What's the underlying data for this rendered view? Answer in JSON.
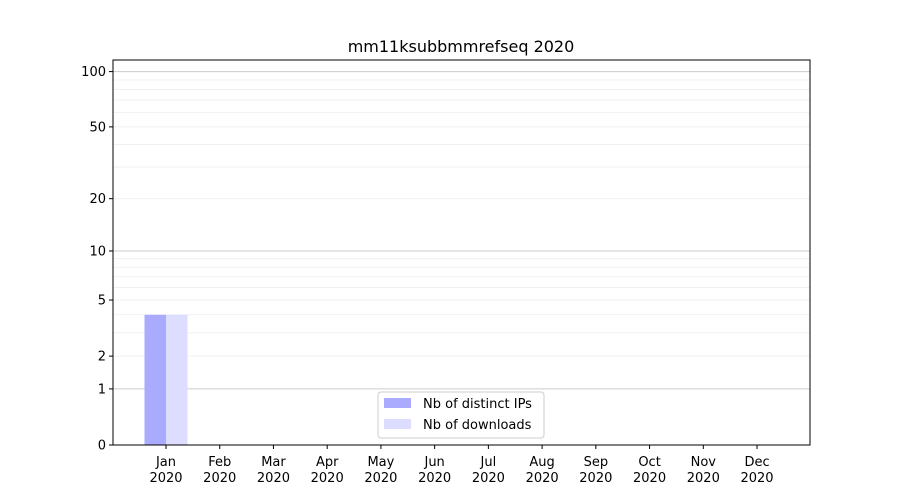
{
  "chart_data": {
    "type": "bar",
    "title": "mm11ksubbmmrefseq 2020",
    "xlabel": "",
    "ylabel": "",
    "yscale": "symlog",
    "ylim": [
      0,
      110
    ],
    "yticks": [
      0,
      1,
      2,
      5,
      10,
      20,
      50,
      100
    ],
    "ytick_labels": [
      "0",
      "1",
      "2",
      "5",
      "10",
      "20",
      "50",
      "100"
    ],
    "categories": [
      "Jan\n2020",
      "Feb\n2020",
      "Mar\n2020",
      "Apr\n2020",
      "May\n2020",
      "Jun\n2020",
      "Jul\n2020",
      "Aug\n2020",
      "Sep\n2020",
      "Oct\n2020",
      "Nov\n2020",
      "Dec\n2020"
    ],
    "grid": true,
    "legend_position": "lower-center",
    "series": [
      {
        "name": "Nb of distinct IPs",
        "color": "#aaaaff",
        "values": [
          4,
          0,
          0,
          0,
          0,
          0,
          0,
          0,
          0,
          0,
          0,
          0
        ]
      },
      {
        "name": "Nb of downloads",
        "color": "#ddddff",
        "values": [
          4,
          0,
          0,
          0,
          0,
          0,
          0,
          0,
          0,
          0,
          0,
          0
        ]
      }
    ]
  }
}
